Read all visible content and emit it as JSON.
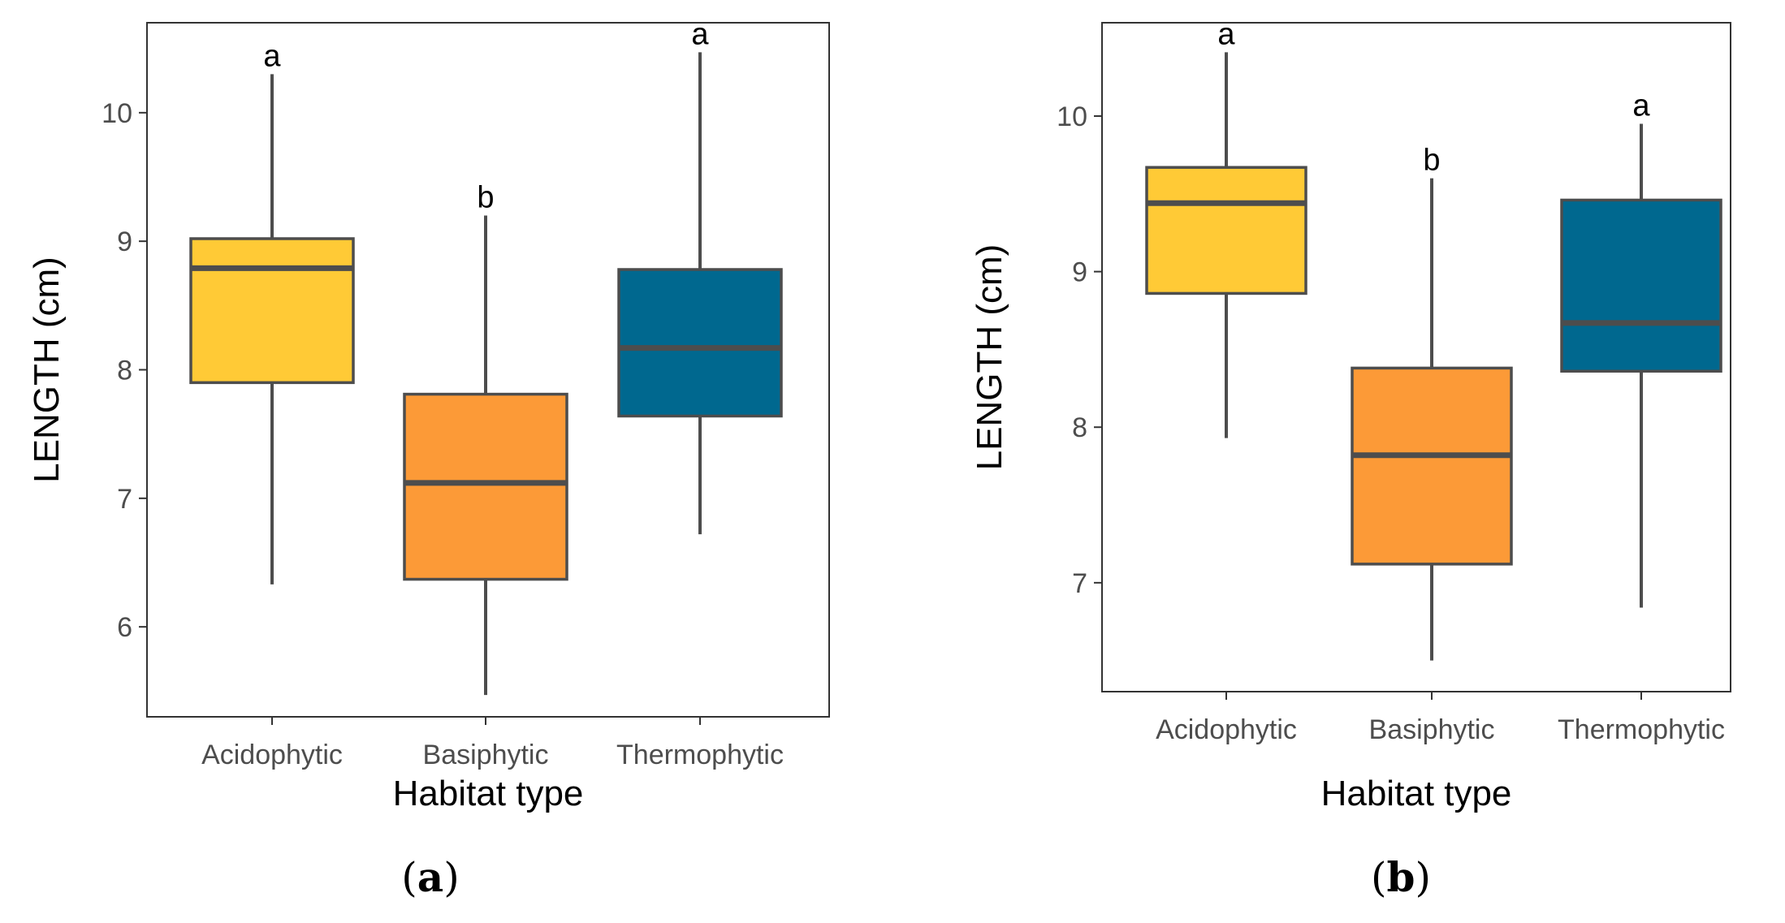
{
  "chart_data": [
    {
      "type": "box",
      "panel_label": "a",
      "xlabel": "Habitat type",
      "ylabel": "LENGTH (cm)",
      "ylim": [
        5.3,
        10.7
      ],
      "yticks": [
        6,
        7,
        8,
        9,
        10
      ],
      "categories": [
        "Acidophytic",
        "Basiphytic",
        "Thermophytic"
      ],
      "colors": [
        "#ffca36",
        "#fc9a37",
        "#00688f"
      ],
      "boxes": [
        {
          "min": 6.33,
          "q1": 7.9,
          "median": 8.79,
          "q3": 9.02,
          "max": 10.3,
          "letter": "a"
        },
        {
          "min": 5.47,
          "q1": 6.37,
          "median": 7.12,
          "q3": 7.81,
          "max": 9.2,
          "letter": "b"
        },
        {
          "min": 6.72,
          "q1": 7.64,
          "median": 8.17,
          "q3": 8.78,
          "max": 10.47,
          "letter": "a"
        }
      ]
    },
    {
      "type": "box",
      "panel_label": "b",
      "xlabel": "Habitat type",
      "ylabel": "LENGTH (cm)",
      "ylim": [
        6.3,
        10.6
      ],
      "yticks": [
        7,
        8,
        9,
        10
      ],
      "categories": [
        "Acidophytic",
        "Basiphytic",
        "Thermophytic"
      ],
      "colors": [
        "#ffca36",
        "#fc9a37",
        "#00688f"
      ],
      "boxes": [
        {
          "min": 7.93,
          "q1": 8.86,
          "median": 9.44,
          "q3": 9.67,
          "max": 10.41,
          "letter": "a"
        },
        {
          "min": 6.5,
          "q1": 7.12,
          "median": 7.82,
          "q3": 8.38,
          "max": 9.6,
          "letter": "b"
        },
        {
          "min": 6.84,
          "q1": 8.36,
          "median": 8.67,
          "q3": 9.46,
          "max": 9.95,
          "letter": "a"
        }
      ]
    }
  ]
}
